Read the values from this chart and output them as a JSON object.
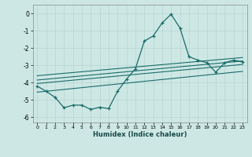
{
  "xlabel": "Humidex (Indice chaleur)",
  "background_color": "#cde8e4",
  "grid_color": "#b8d4d0",
  "line_color": "#1a6b6b",
  "xlim": [
    -0.5,
    23.5
  ],
  "ylim": [
    -6.3,
    0.5
  ],
  "yticks": [
    0,
    -1,
    -2,
    -3,
    -4,
    -5,
    -6
  ],
  "xticks": [
    0,
    1,
    2,
    3,
    4,
    5,
    6,
    7,
    8,
    9,
    10,
    11,
    12,
    13,
    14,
    15,
    16,
    17,
    18,
    19,
    20,
    21,
    22,
    23
  ],
  "main_line_x": [
    0,
    1,
    2,
    3,
    4,
    5,
    6,
    7,
    8,
    9,
    10,
    11,
    12,
    13,
    14,
    15,
    16,
    17,
    18,
    19,
    20,
    21,
    22,
    23
  ],
  "main_line_y": [
    -4.2,
    -4.5,
    -4.85,
    -5.45,
    -5.3,
    -5.3,
    -5.55,
    -5.42,
    -5.5,
    -4.5,
    -3.8,
    -3.2,
    -1.6,
    -1.3,
    -0.55,
    -0.05,
    -0.85,
    -2.5,
    -2.7,
    -2.85,
    -3.4,
    -2.85,
    -2.7,
    -2.8
  ],
  "upper_line_x": [
    0,
    23
  ],
  "upper_line_y": [
    -3.6,
    -2.55
  ],
  "middle_upper_line_x": [
    0,
    23
  ],
  "middle_upper_line_y": [
    -3.85,
    -2.75
  ],
  "middle_lower_line_x": [
    0,
    23
  ],
  "middle_lower_line_y": [
    -4.05,
    -2.95
  ],
  "lower_line_x": [
    0,
    23
  ],
  "lower_line_y": [
    -4.55,
    -3.35
  ]
}
